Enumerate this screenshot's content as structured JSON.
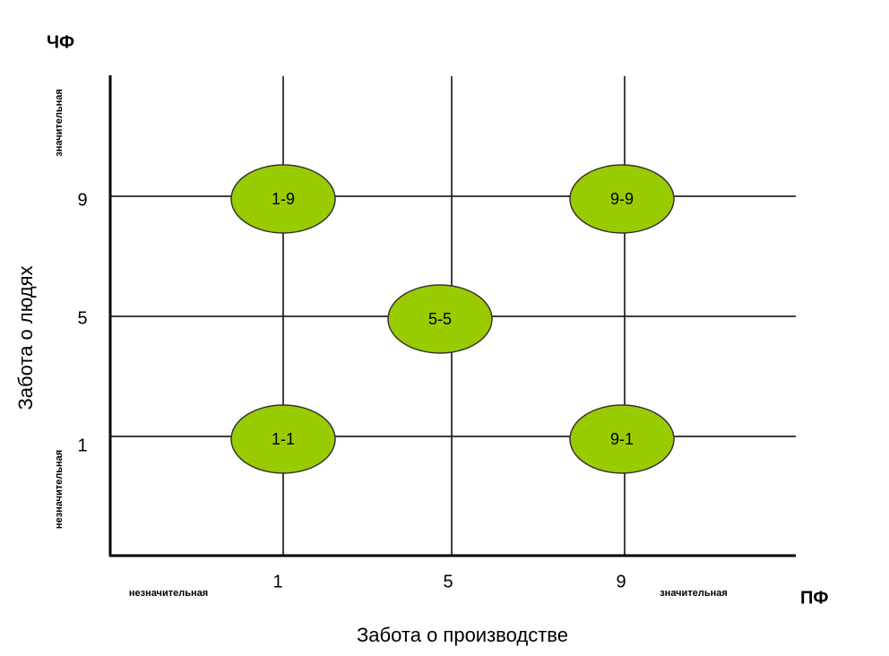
{
  "y_axis": {
    "code": "ЧФ",
    "title": "Забота о людях",
    "high": "значительная",
    "low": "незначительная",
    "ticks": [
      "9",
      "5",
      "1"
    ]
  },
  "x_axis": {
    "code": "ПФ",
    "title": "Забота о производстве",
    "high": "значительная",
    "low": "незначительная",
    "ticks": [
      "1",
      "5",
      "9"
    ]
  },
  "nodes": [
    {
      "label": "1-9"
    },
    {
      "label": "9-9"
    },
    {
      "label": "5-5"
    },
    {
      "label": "1-1"
    },
    {
      "label": "9-1"
    }
  ]
}
